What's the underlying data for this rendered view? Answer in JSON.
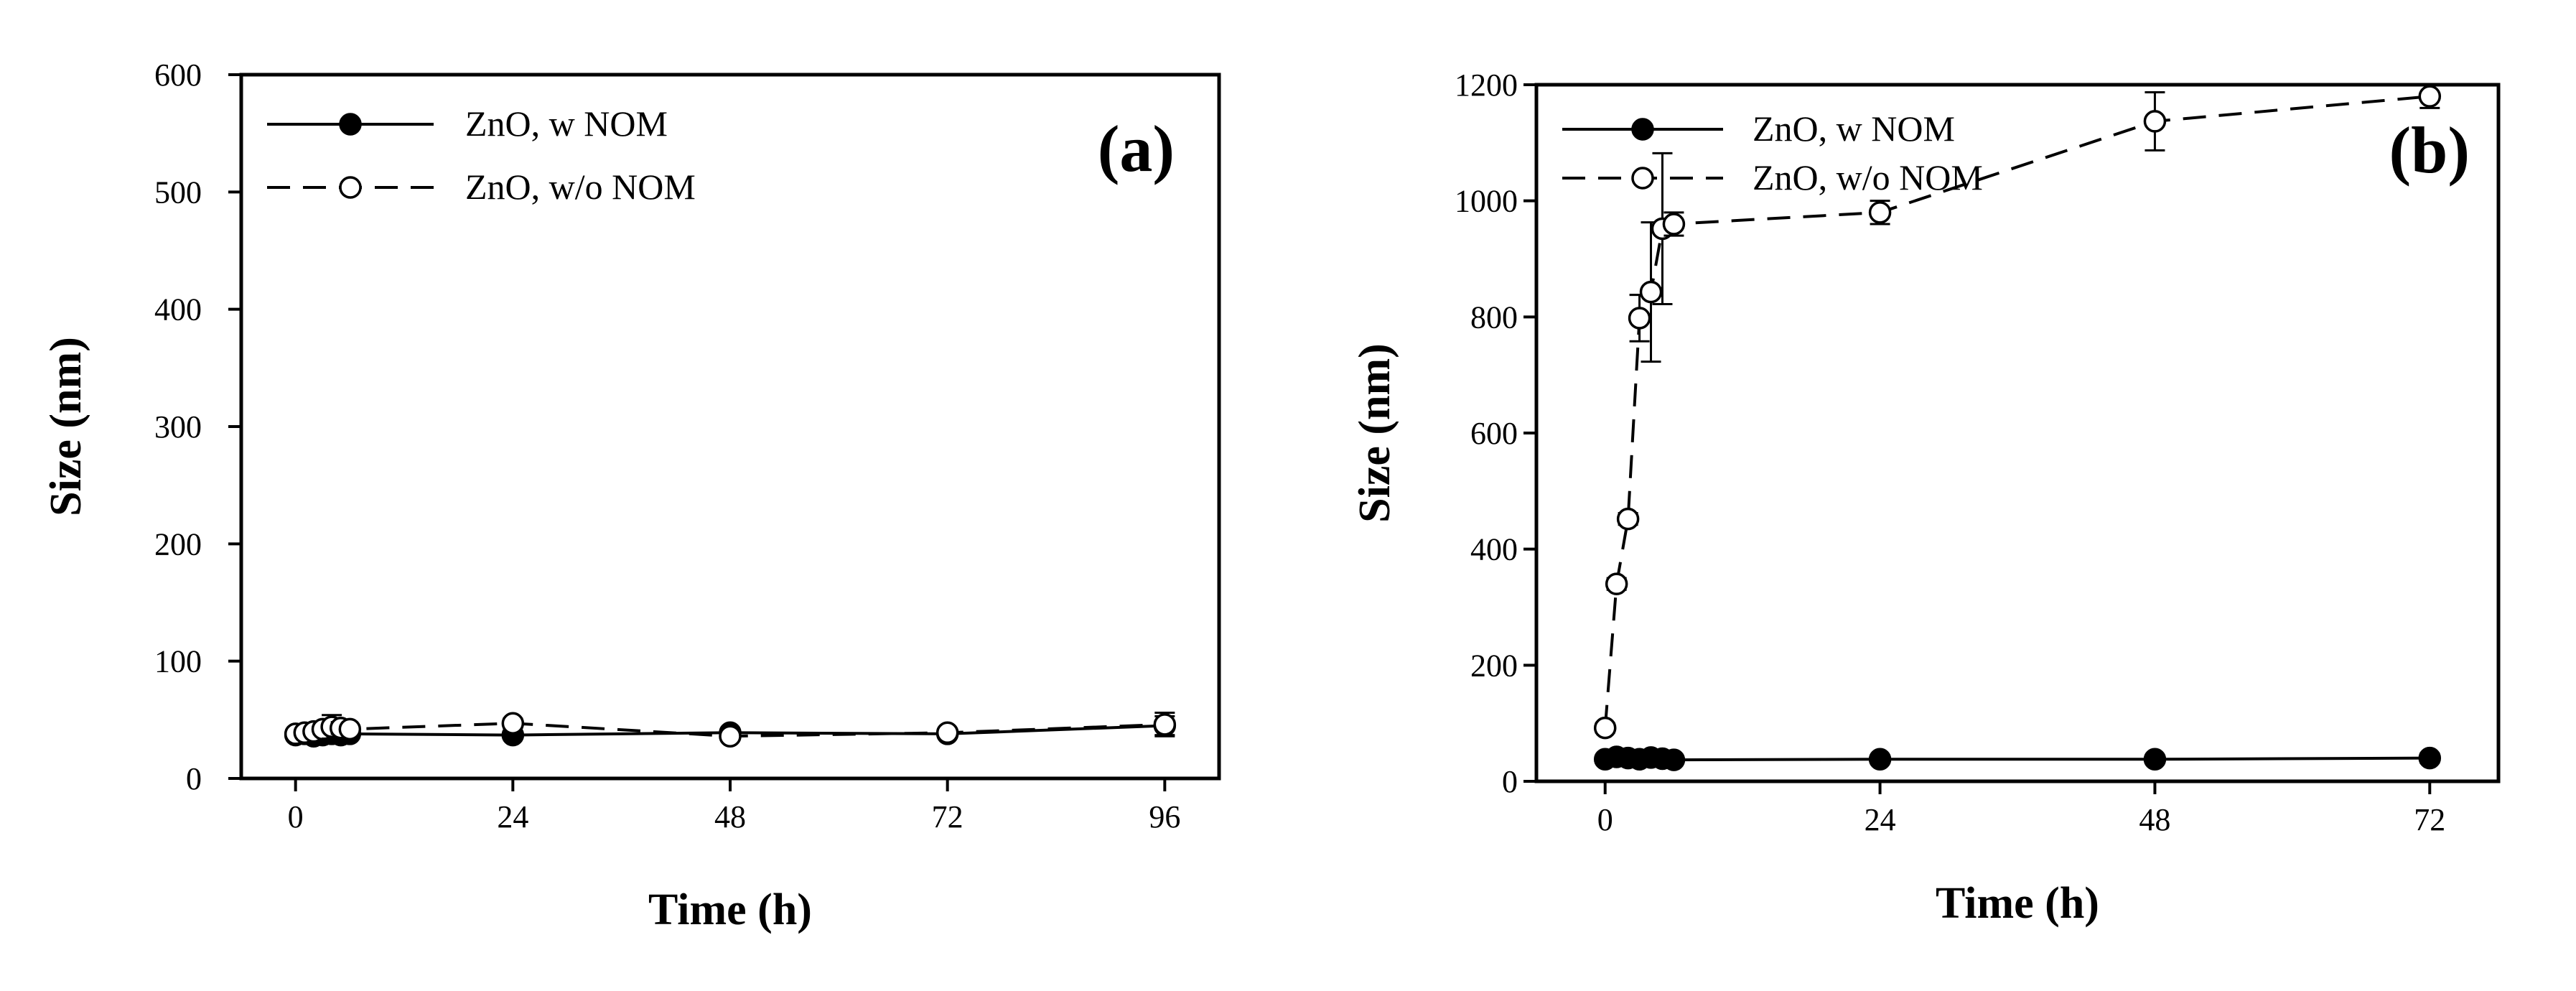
{
  "chart_data": [
    {
      "type": "line",
      "panel_label": "(a)",
      "xlabel": "Time (h)",
      "ylabel": "Size (nm)",
      "xlim": [
        -6,
        102
      ],
      "ylim": [
        0,
        600
      ],
      "xticks": [
        0,
        24,
        48,
        72,
        96
      ],
      "yticks": [
        0,
        100,
        200,
        300,
        400,
        500,
        600
      ],
      "grid": false,
      "legend_position": "top-left",
      "series": [
        {
          "name": "ZnO, w NOM",
          "marker": "filled-circle",
          "line": "solid",
          "x": [
            0,
            1,
            2,
            3,
            4,
            5,
            6,
            24,
            48,
            72,
            96
          ],
          "y": [
            37,
            38,
            36,
            37,
            38,
            37,
            38,
            37,
            39,
            38,
            45
          ],
          "err": [
            3,
            3,
            3,
            3,
            3,
            3,
            3,
            3,
            3,
            3,
            8
          ]
        },
        {
          "name": "ZnO, w/o NOM",
          "marker": "open-circle",
          "line": "dashed",
          "x": [
            0,
            1,
            2,
            3,
            4,
            5,
            6,
            24,
            48,
            72,
            96
          ],
          "y": [
            38,
            39,
            40,
            42,
            44,
            43,
            42,
            47,
            36,
            39,
            46
          ],
          "err": [
            3,
            3,
            3,
            4,
            10,
            5,
            3,
            4,
            3,
            3,
            10
          ]
        }
      ]
    },
    {
      "type": "line",
      "panel_label": "(b)",
      "xlabel": "Time (h)",
      "ylabel": "Size (nm)",
      "xlim": [
        -6,
        78
      ],
      "ylim": [
        0,
        1200
      ],
      "xticks": [
        0,
        24,
        48,
        72
      ],
      "yticks": [
        0,
        200,
        400,
        600,
        800,
        1000,
        1200
      ],
      "grid": false,
      "legend_position": "top-left",
      "series": [
        {
          "name": "ZnO, w NOM",
          "marker": "filled-circle",
          "line": "solid",
          "x": [
            0,
            1,
            2,
            3,
            4,
            5,
            6,
            24,
            48,
            72
          ],
          "y": [
            38,
            42,
            40,
            38,
            41,
            39,
            37,
            38,
            38,
            40
          ],
          "err": [
            4,
            4,
            4,
            4,
            4,
            4,
            4,
            4,
            4,
            8
          ]
        },
        {
          "name": "ZnO, w/o NOM",
          "marker": "open-circle",
          "line": "dashed",
          "x": [
            0,
            1,
            2,
            3,
            4,
            5,
            6,
            24,
            48,
            72
          ],
          "y": [
            92,
            340,
            452,
            798,
            843,
            952,
            960,
            980,
            1137,
            1180
          ],
          "err": [
            8,
            10,
            10,
            40,
            120,
            130,
            20,
            20,
            50,
            20
          ]
        }
      ]
    }
  ]
}
